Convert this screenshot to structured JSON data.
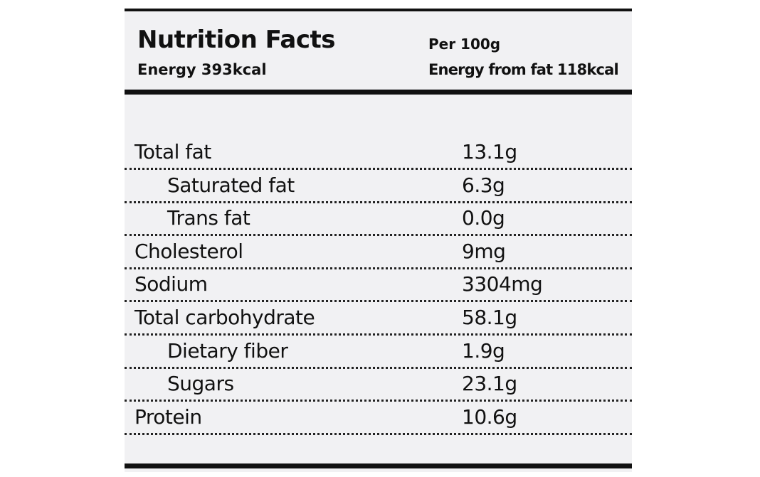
{
  "header": {
    "title": "Nutrition Facts",
    "energy": "Energy 393kcal",
    "per": "Per 100g",
    "energy_from_fat": "Energy from fat 118kcal"
  },
  "table": {
    "rows": [
      [
        "Total fat",
        "13.1g"
      ],
      [
        "Saturated fat",
        "6.3g"
      ],
      [
        "Trans fat",
        "0.0g"
      ],
      [
        "Cholesterol",
        "9mg"
      ],
      [
        "Sodium",
        "3304mg"
      ],
      [
        "Total carbohydrate",
        "58.1g"
      ],
      [
        "Dietary fiber",
        "1.9g"
      ],
      [
        "Sugars",
        "23.1g"
      ],
      [
        "Protein",
        "10.6g"
      ]
    ]
  }
}
